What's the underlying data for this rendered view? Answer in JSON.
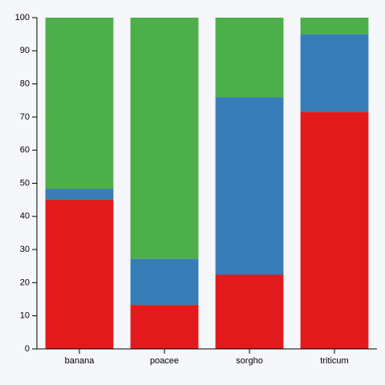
{
  "chart_data": {
    "type": "bar",
    "stacked": true,
    "categories": [
      "banana",
      "poacee",
      "sorgho",
      "triticum"
    ],
    "series": [
      {
        "values": [
          45.2,
          13.3,
          22.4,
          71.6
        ],
        "color": "#e31a1c"
      },
      {
        "values": [
          3.1,
          13.9,
          53.6,
          23.4
        ],
        "color": "#377eb8"
      },
      {
        "values": [
          51.7,
          72.8,
          24.0,
          5.0
        ],
        "color": "#4daf4a"
      }
    ],
    "ylim": [
      0,
      100
    ],
    "yticks": [
      "0",
      "10",
      "20",
      "30",
      "40",
      "50",
      "60",
      "70",
      "80",
      "90",
      "100"
    ],
    "title": "",
    "xlabel": "",
    "ylabel": "",
    "grid": false,
    "legend": "none"
  }
}
